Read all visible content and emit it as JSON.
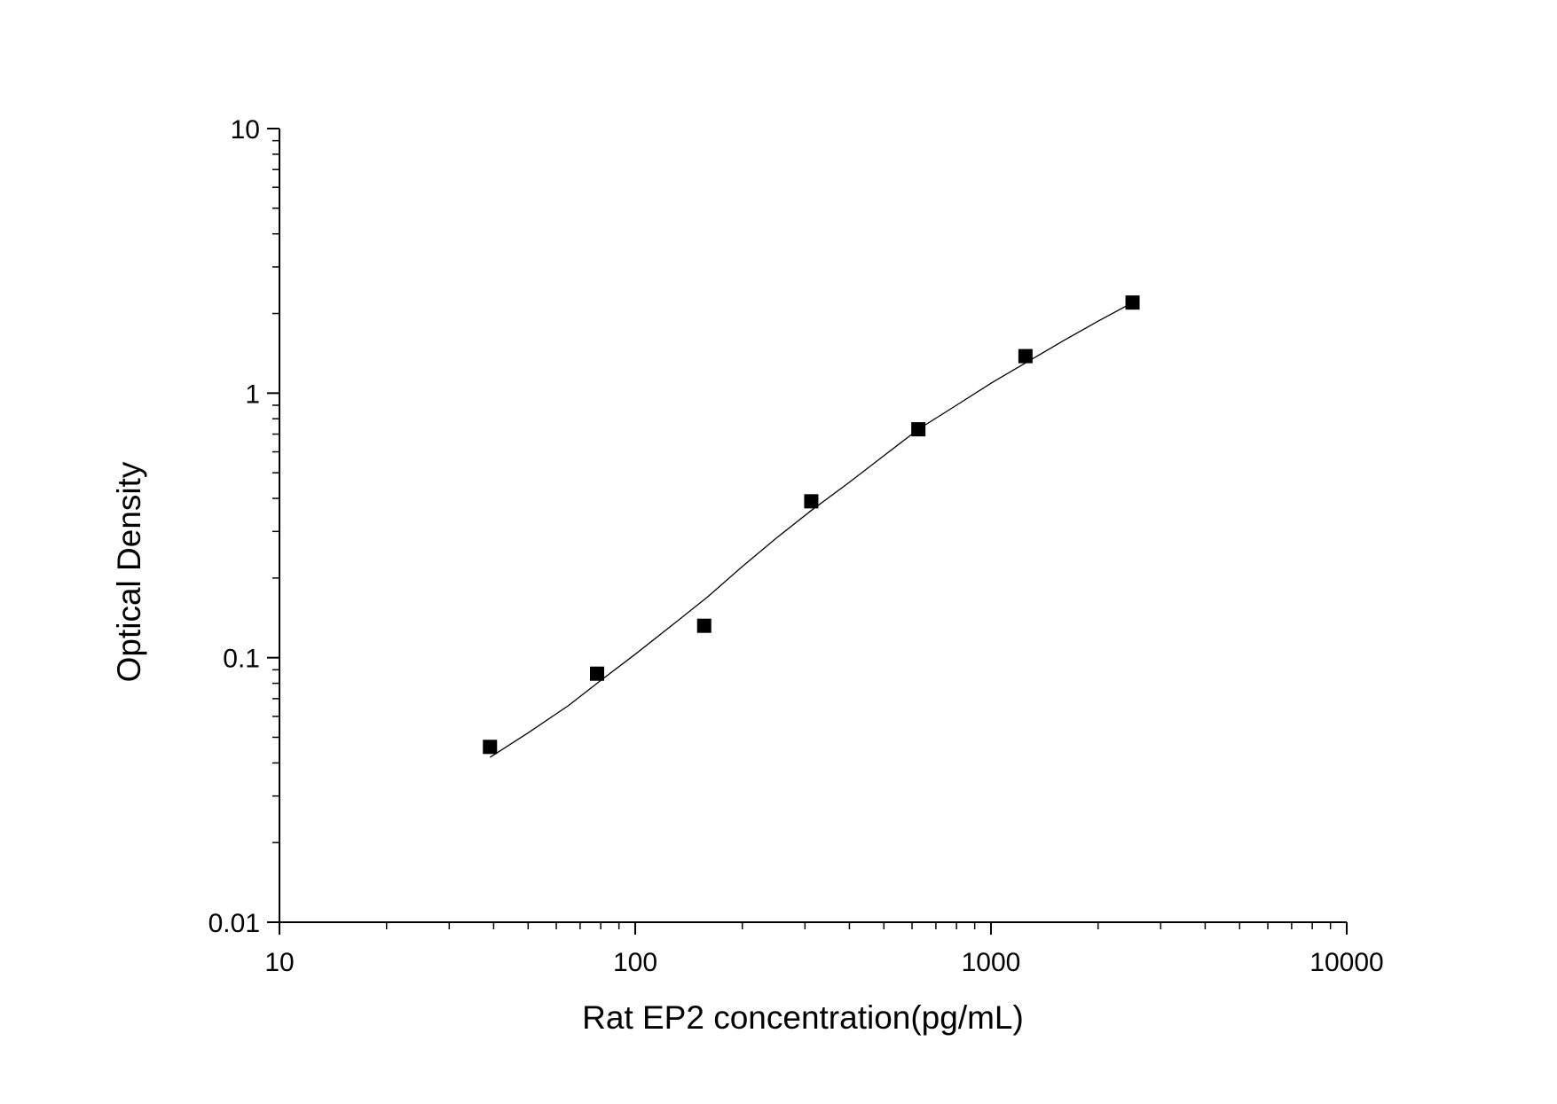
{
  "chart_data": {
    "type": "scatter",
    "xlabel": "Rat EP2 concentration(pg/mL)",
    "ylabel": "Optical Density",
    "xscale": "log",
    "yscale": "log",
    "xlim": [
      10,
      10000
    ],
    "ylim": [
      0.01,
      10
    ],
    "x_ticks": [
      {
        "value": 10,
        "label": "10"
      },
      {
        "value": 100,
        "label": "100"
      },
      {
        "value": 1000,
        "label": "1000"
      },
      {
        "value": 10000,
        "label": "10000"
      }
    ],
    "y_ticks": [
      {
        "value": 0.01,
        "label": "0.01"
      },
      {
        "value": 0.1,
        "label": "0.1"
      },
      {
        "value": 1,
        "label": "1"
      },
      {
        "value": 10,
        "label": "10"
      }
    ],
    "grid": false,
    "legend": false,
    "series": [
      {
        "kind": "points",
        "marker": "square",
        "color": "#000000",
        "x": [
          39.06,
          78.13,
          156.25,
          312.5,
          625,
          1250,
          2500
        ],
        "y": [
          0.046,
          0.087,
          0.132,
          0.39,
          0.73,
          1.38,
          2.2
        ]
      },
      {
        "kind": "fit-curve",
        "color": "#000000",
        "x": [
          39.06,
          50,
          65,
          80,
          100,
          130,
          160,
          200,
          250,
          312.5,
          400,
          500,
          625,
          800,
          1000,
          1250,
          1600,
          2000,
          2500
        ],
        "y": [
          0.042,
          0.052,
          0.066,
          0.082,
          0.103,
          0.136,
          0.17,
          0.221,
          0.284,
          0.36,
          0.46,
          0.58,
          0.73,
          0.9,
          1.09,
          1.3,
          1.58,
          1.87,
          2.2
        ]
      }
    ]
  }
}
